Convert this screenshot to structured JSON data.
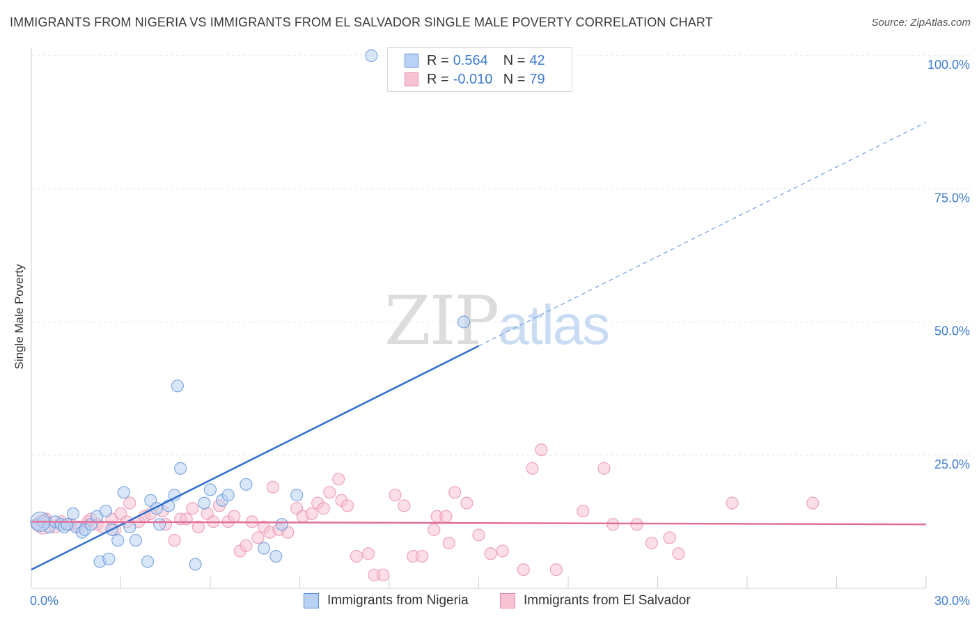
{
  "title": "IMMIGRANTS FROM NIGERIA VS IMMIGRANTS FROM EL SALVADOR SINGLE MALE POVERTY CORRELATION CHART",
  "source": "Source: ZipAtlas.com",
  "watermark": {
    "zip": "ZIP",
    "atlas": "atlas"
  },
  "legend": {
    "rows": [
      {
        "r_label": "R =",
        "r_value": "0.564",
        "n_label": "N =",
        "n_value": "42",
        "color": "#5b8fd8",
        "fill": "#b9d1f2"
      },
      {
        "r_label": "R =",
        "r_value": "-0.010",
        "n_label": "N =",
        "n_value": "79",
        "color": "#e98aa8",
        "fill": "#f7c3d3"
      }
    ]
  },
  "bottom_legend": [
    {
      "label": "Immigrants from Nigeria",
      "color": "#5b8fd8",
      "fill": "#b9d1f2"
    },
    {
      "label": "Immigrants from El Salvador",
      "color": "#e98aa8",
      "fill": "#f7c3d3"
    }
  ],
  "chart_data": {
    "type": "scatter",
    "title": "IMMIGRANTS FROM NIGERIA VS IMMIGRANTS FROM EL SALVADOR SINGLE MALE POVERTY CORRELATION CHART",
    "xlabel": "",
    "ylabel": "Single Male Poverty",
    "xlim": [
      0,
      30
    ],
    "ylim": [
      0,
      100
    ],
    "x_tick_labels": [
      "0.0%",
      "30.0%"
    ],
    "y_ticks": [
      25,
      50,
      75,
      100
    ],
    "y_tick_labels": [
      "25.0%",
      "50.0%",
      "75.0%",
      "100.0%"
    ],
    "grid": true,
    "series": [
      {
        "name": "Immigrants from Nigeria",
        "color": "#5b8fd8",
        "fill": "#b9d1f2",
        "trend": {
          "x0": 0,
          "y0": 3.5,
          "x1": 15,
          "y1": 45.5,
          "x_ext": 30,
          "y_ext": 87.5
        },
        "points": [
          [
            0.2,
            12.0
          ],
          [
            0.4,
            12.5
          ],
          [
            0.6,
            11.5
          ],
          [
            0.8,
            12.5
          ],
          [
            1.0,
            12.0
          ],
          [
            1.1,
            11.5
          ],
          [
            1.4,
            14.0
          ],
          [
            1.5,
            11.5
          ],
          [
            1.7,
            10.5
          ],
          [
            1.8,
            11.0
          ],
          [
            2.0,
            12.0
          ],
          [
            2.2,
            13.5
          ],
          [
            2.3,
            5.0
          ],
          [
            2.5,
            14.5
          ],
          [
            2.6,
            5.5
          ],
          [
            2.7,
            11.0
          ],
          [
            2.9,
            9.0
          ],
          [
            3.1,
            18.0
          ],
          [
            3.3,
            11.5
          ],
          [
            3.5,
            9.0
          ],
          [
            3.9,
            5.0
          ],
          [
            4.0,
            16.5
          ],
          [
            4.2,
            15.0
          ],
          [
            4.3,
            12.0
          ],
          [
            4.6,
            15.5
          ],
          [
            4.8,
            17.5
          ],
          [
            4.9,
            38.0
          ],
          [
            5.0,
            22.5
          ],
          [
            5.5,
            4.5
          ],
          [
            5.8,
            16.0
          ],
          [
            6.0,
            18.5
          ],
          [
            6.4,
            16.5
          ],
          [
            6.6,
            17.5
          ],
          [
            7.2,
            19.5
          ],
          [
            7.8,
            7.5
          ],
          [
            8.2,
            6.0
          ],
          [
            8.4,
            12.0
          ],
          [
            8.9,
            17.5
          ],
          [
            11.4,
            100.0
          ],
          [
            14.5,
            50.0
          ],
          [
            0.3,
            12.5
          ],
          [
            1.2,
            12.0
          ]
        ]
      },
      {
        "name": "Immigrants from El Salvador",
        "color": "#e98aa8",
        "fill": "#f7c3d3",
        "trend": {
          "x0": 0,
          "y0": 12.5,
          "x1": 30,
          "y1": 12.0
        },
        "points": [
          [
            0.2,
            12.0
          ],
          [
            0.5,
            13.0
          ],
          [
            0.8,
            11.5
          ],
          [
            1.0,
            12.5
          ],
          [
            1.3,
            12.0
          ],
          [
            1.6,
            11.5
          ],
          [
            1.9,
            12.5
          ],
          [
            2.0,
            13.0
          ],
          [
            2.2,
            12.0
          ],
          [
            2.4,
            11.5
          ],
          [
            2.7,
            13.0
          ],
          [
            2.8,
            11.0
          ],
          [
            3.0,
            14.0
          ],
          [
            3.2,
            12.5
          ],
          [
            3.3,
            16.0
          ],
          [
            3.6,
            12.5
          ],
          [
            3.8,
            13.5
          ],
          [
            4.0,
            14.0
          ],
          [
            4.4,
            14.5
          ],
          [
            4.5,
            12.0
          ],
          [
            4.8,
            9.0
          ],
          [
            5.0,
            13.0
          ],
          [
            5.2,
            13.0
          ],
          [
            5.4,
            15.0
          ],
          [
            5.6,
            11.5
          ],
          [
            5.9,
            14.0
          ],
          [
            6.1,
            12.5
          ],
          [
            6.3,
            15.5
          ],
          [
            6.6,
            12.5
          ],
          [
            6.8,
            13.5
          ],
          [
            7.0,
            7.0
          ],
          [
            7.2,
            8.0
          ],
          [
            7.4,
            12.5
          ],
          [
            7.6,
            9.5
          ],
          [
            7.8,
            11.5
          ],
          [
            8.0,
            10.5
          ],
          [
            8.1,
            19.0
          ],
          [
            8.3,
            11.0
          ],
          [
            8.6,
            10.5
          ],
          [
            8.9,
            15.0
          ],
          [
            9.1,
            13.5
          ],
          [
            9.4,
            14.0
          ],
          [
            9.6,
            16.0
          ],
          [
            9.8,
            15.0
          ],
          [
            10.0,
            18.0
          ],
          [
            10.3,
            20.5
          ],
          [
            10.4,
            16.5
          ],
          [
            10.6,
            15.5
          ],
          [
            10.9,
            6.0
          ],
          [
            11.3,
            6.5
          ],
          [
            11.5,
            2.5
          ],
          [
            11.8,
            2.5
          ],
          [
            12.2,
            17.5
          ],
          [
            12.5,
            15.5
          ],
          [
            12.8,
            6.0
          ],
          [
            13.1,
            6.0
          ],
          [
            13.5,
            11.0
          ],
          [
            13.6,
            13.5
          ],
          [
            13.9,
            13.5
          ],
          [
            14.0,
            8.5
          ],
          [
            14.2,
            18.0
          ],
          [
            14.6,
            16.0
          ],
          [
            15.0,
            10.0
          ],
          [
            15.4,
            6.5
          ],
          [
            15.8,
            7.0
          ],
          [
            16.5,
            3.5
          ],
          [
            16.8,
            22.5
          ],
          [
            17.1,
            26.0
          ],
          [
            17.6,
            3.5
          ],
          [
            18.5,
            14.5
          ],
          [
            19.2,
            22.5
          ],
          [
            19.5,
            12.0
          ],
          [
            20.3,
            12.0
          ],
          [
            20.8,
            8.5
          ],
          [
            21.4,
            9.5
          ],
          [
            21.7,
            6.5
          ],
          [
            23.5,
            16.0
          ],
          [
            26.2,
            16.0
          ],
          [
            0.4,
            12.0
          ]
        ]
      }
    ]
  }
}
